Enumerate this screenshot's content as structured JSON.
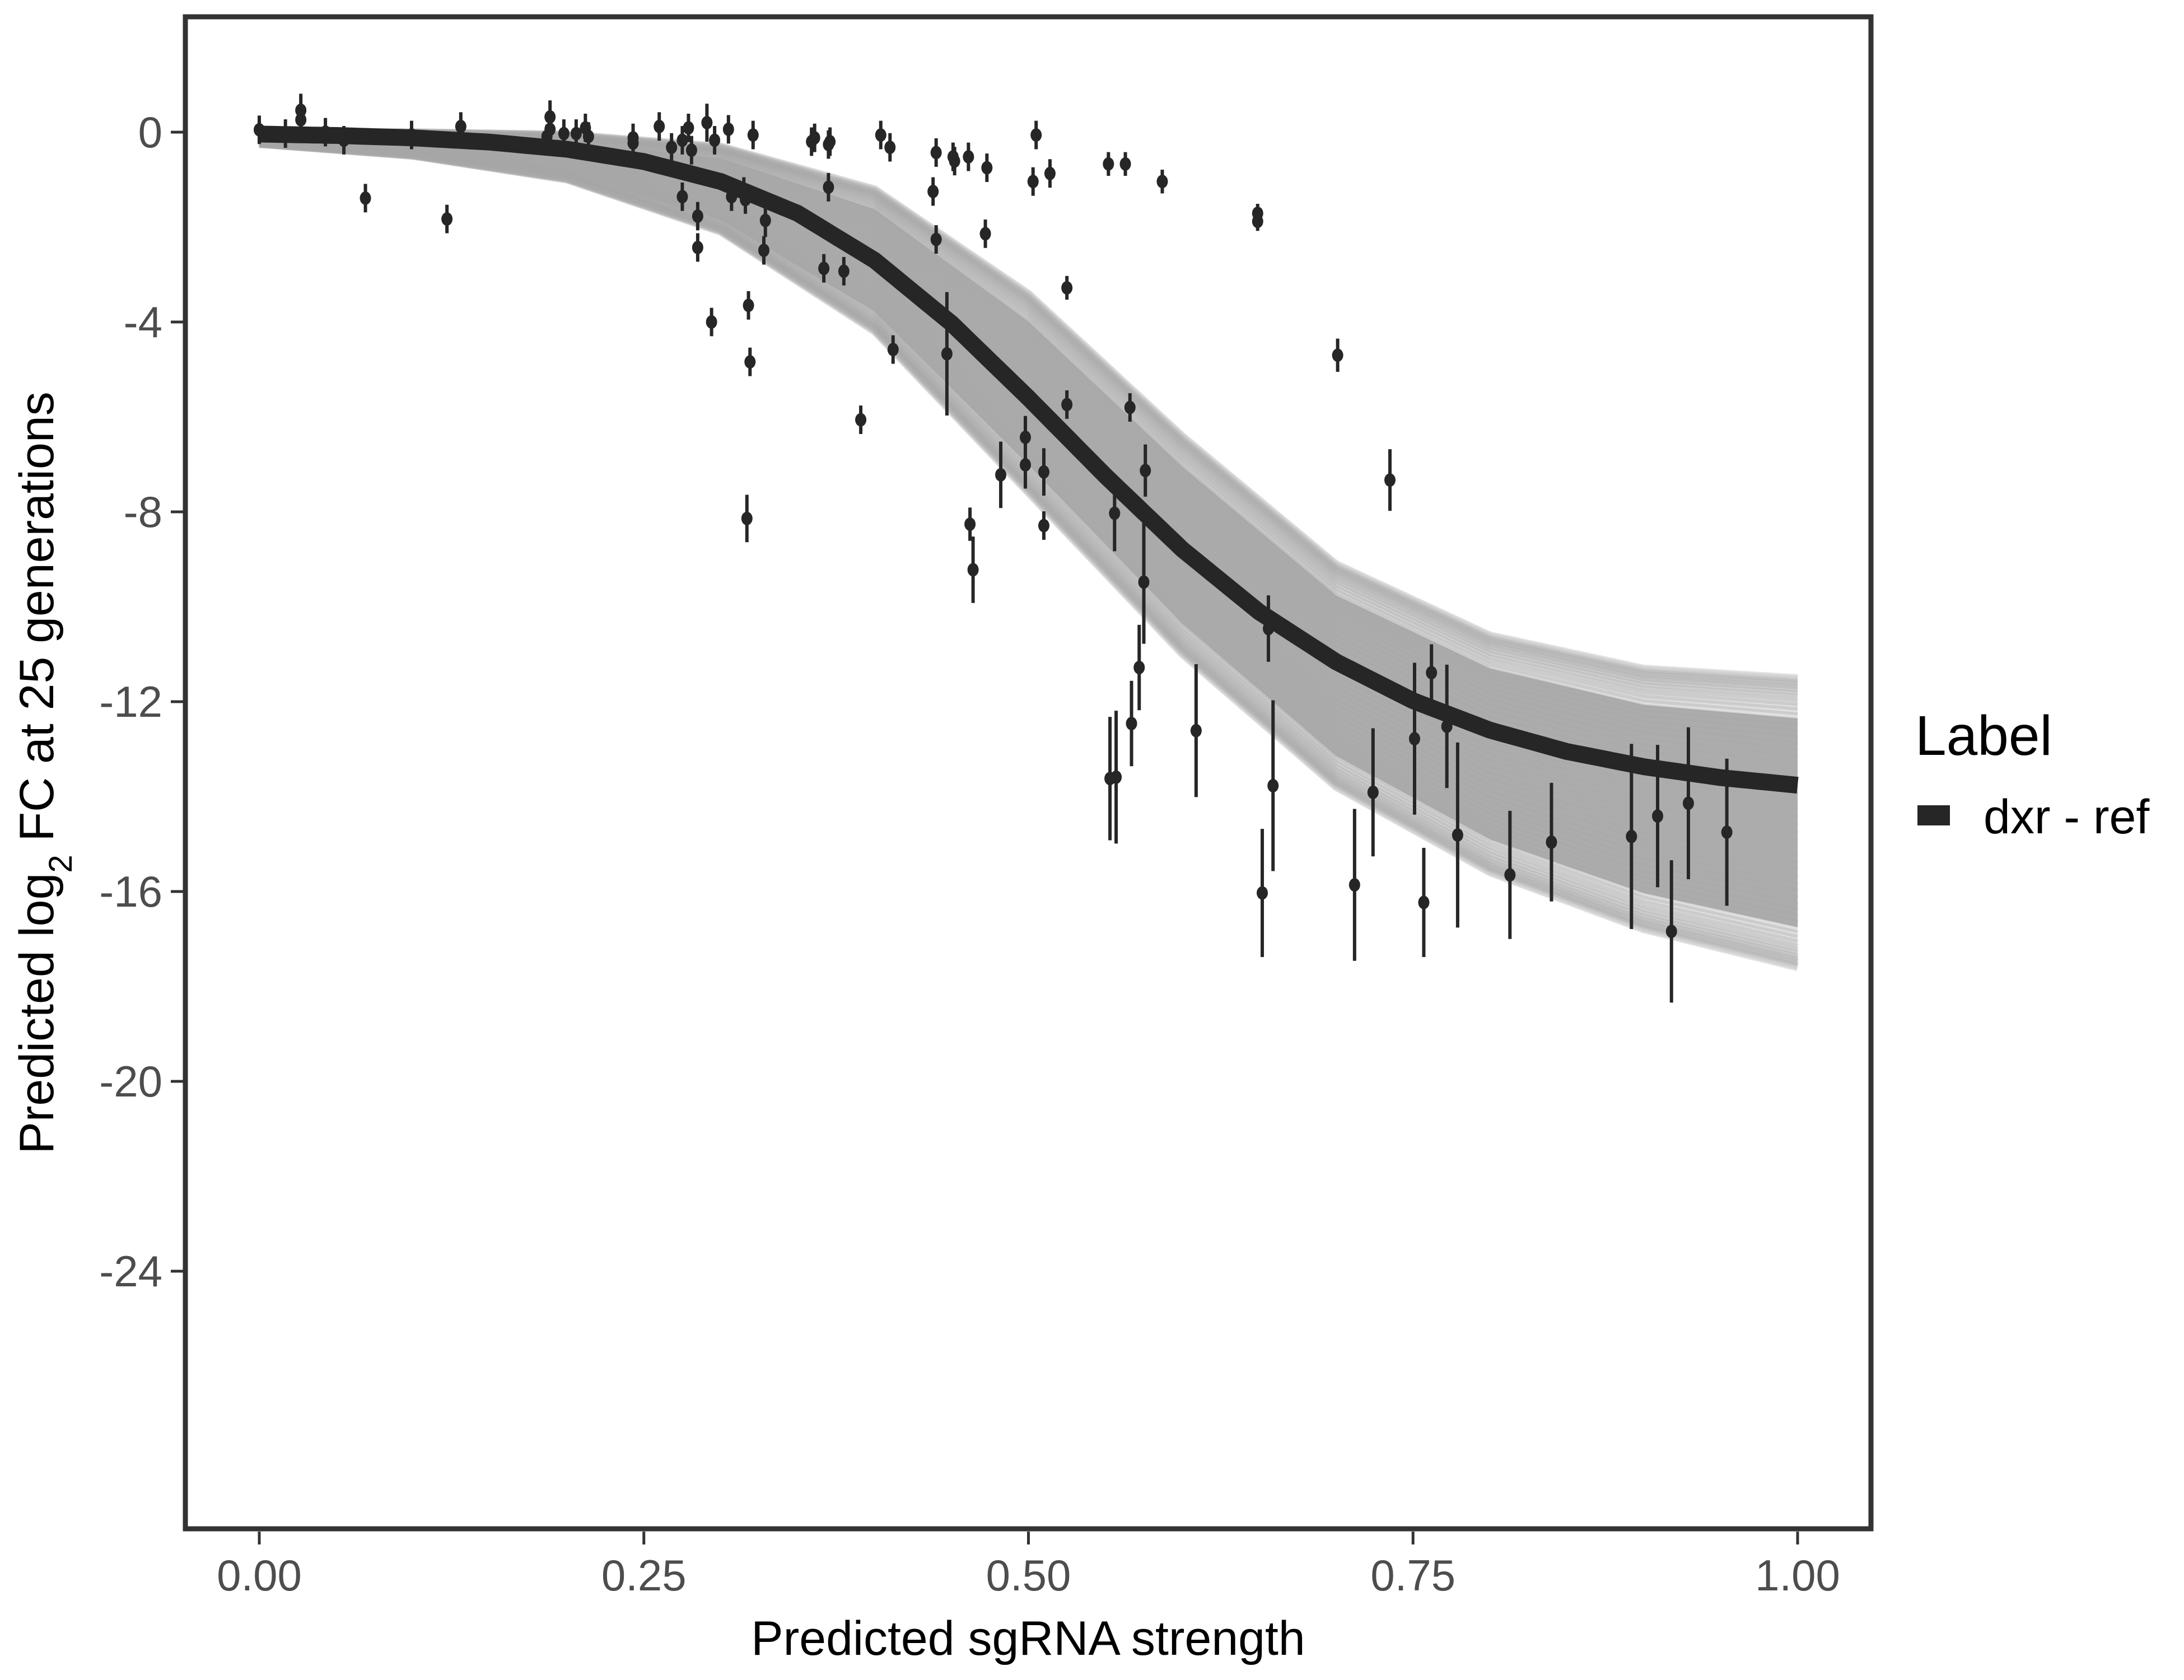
{
  "chart_data": {
    "type": "scatter",
    "title": "",
    "xlabel": "Predicted sgRNA strength",
    "ylabel_parts": {
      "before": "Predicted  log",
      "subscript": "2",
      "after": " FC at 25 generations"
    },
    "xlim": [
      -0.05,
      1.05
    ],
    "ylim": [
      -29.4,
      2.4
    ],
    "x_ticks": [
      0.0,
      0.25,
      0.5,
      0.75,
      1.0
    ],
    "x_tick_labels": [
      "0.00",
      "0.25",
      "0.50",
      "0.75",
      "1.00"
    ],
    "y_ticks": [
      0,
      -4,
      -8,
      -12,
      -16,
      -20,
      -24
    ],
    "y_tick_labels": [
      "0",
      "-4",
      "-8",
      "-12",
      "-16",
      "-20",
      "-24"
    ],
    "grid": false,
    "legend": {
      "title": "Label",
      "position": "right",
      "entries": [
        {
          "label": "dxr - ref",
          "color": "#262626"
        }
      ]
    },
    "colors": {
      "fit_line": "#262626",
      "posterior_draws": "#a6a6a6",
      "points": "#262626",
      "frame": "#333333"
    },
    "fit_curve": {
      "name": "dxr - ref",
      "model": "logistic",
      "x": [
        0.0,
        0.05,
        0.1,
        0.15,
        0.2,
        0.25,
        0.3,
        0.35,
        0.4,
        0.45,
        0.5,
        0.55,
        0.6,
        0.65,
        0.7,
        0.75,
        0.8,
        0.85,
        0.9,
        0.95,
        1.0
      ],
      "y": [
        -0.04,
        -0.07,
        -0.12,
        -0.21,
        -0.36,
        -0.62,
        -1.04,
        -1.71,
        -2.7,
        -4.03,
        -5.6,
        -7.24,
        -8.79,
        -10.11,
        -11.16,
        -11.98,
        -12.6,
        -13.05,
        -13.37,
        -13.6,
        -13.76
      ]
    },
    "posterior_band": {
      "x": [
        0.0,
        0.1,
        0.2,
        0.3,
        0.4,
        0.5,
        0.6,
        0.7,
        0.8,
        0.9,
        1.0
      ],
      "upper": [
        0.0,
        0.0,
        -0.05,
        -0.3,
        -1.2,
        -3.4,
        -6.4,
        -9.1,
        -10.6,
        -11.3,
        -11.5
      ],
      "lower": [
        -0.25,
        -0.5,
        -1.0,
        -2.1,
        -4.2,
        -7.6,
        -11.0,
        -13.8,
        -15.6,
        -16.8,
        -17.6
      ]
    },
    "points": [
      {
        "x": 0.0,
        "y": 0.05,
        "err": 0.3
      },
      {
        "x": 0.017,
        "y": -0.03,
        "err": 0.3
      },
      {
        "x": 0.027,
        "y": 0.46,
        "err": 0.35
      },
      {
        "x": 0.027,
        "y": 0.26,
        "err": 0.35
      },
      {
        "x": 0.043,
        "y": 0.0,
        "err": 0.3
      },
      {
        "x": 0.055,
        "y": -0.17,
        "err": 0.3
      },
      {
        "x": 0.069,
        "y": -1.39,
        "err": 0.3
      },
      {
        "x": 0.099,
        "y": -0.06,
        "err": 0.3
      },
      {
        "x": 0.122,
        "y": -1.83,
        "err": 0.3
      },
      {
        "x": 0.131,
        "y": 0.12,
        "err": 0.3
      },
      {
        "x": 0.187,
        "y": -0.09,
        "err": 0.25
      },
      {
        "x": 0.189,
        "y": 0.32,
        "err": 0.35
      },
      {
        "x": 0.189,
        "y": 0.06,
        "err": 0.3
      },
      {
        "x": 0.198,
        "y": -0.03,
        "err": 0.3
      },
      {
        "x": 0.206,
        "y": -0.03,
        "err": 0.3
      },
      {
        "x": 0.212,
        "y": 0.09,
        "err": 0.3
      },
      {
        "x": 0.214,
        "y": -0.09,
        "err": 0.3
      },
      {
        "x": 0.243,
        "y": -0.12,
        "err": 0.3
      },
      {
        "x": 0.243,
        "y": -0.23,
        "err": 0.3
      },
      {
        "x": 0.26,
        "y": 0.12,
        "err": 0.3
      },
      {
        "x": 0.268,
        "y": -0.32,
        "err": 0.3
      },
      {
        "x": 0.275,
        "y": -1.36,
        "err": 0.3
      },
      {
        "x": 0.275,
        "y": -0.17,
        "err": 0.3
      },
      {
        "x": 0.279,
        "y": 0.09,
        "err": 0.3
      },
      {
        "x": 0.281,
        "y": -0.38,
        "err": 0.3
      },
      {
        "x": 0.285,
        "y": -1.77,
        "err": 0.3
      },
      {
        "x": 0.285,
        "y": -2.43,
        "err": 0.3
      },
      {
        "x": 0.291,
        "y": 0.2,
        "err": 0.4
      },
      {
        "x": 0.294,
        "y": -4.0,
        "err": 0.3
      },
      {
        "x": 0.296,
        "y": -0.17,
        "err": 0.3
      },
      {
        "x": 0.305,
        "y": 0.06,
        "err": 0.3
      },
      {
        "x": 0.307,
        "y": -1.36,
        "err": 0.3
      },
      {
        "x": 0.315,
        "y": -1.25,
        "err": 0.3
      },
      {
        "x": 0.316,
        "y": -1.42,
        "err": 0.3
      },
      {
        "x": 0.317,
        "y": -8.14,
        "err": 0.5
      },
      {
        "x": 0.318,
        "y": -3.65,
        "err": 0.3
      },
      {
        "x": 0.319,
        "y": -4.84,
        "err": 0.3
      },
      {
        "x": 0.321,
        "y": -0.06,
        "err": 0.3
      },
      {
        "x": 0.328,
        "y": -2.49,
        "err": 0.3
      },
      {
        "x": 0.329,
        "y": -1.86,
        "err": 0.35
      },
      {
        "x": 0.359,
        "y": -0.2,
        "err": 0.3
      },
      {
        "x": 0.361,
        "y": -0.12,
        "err": 0.3
      },
      {
        "x": 0.367,
        "y": -2.87,
        "err": 0.3
      },
      {
        "x": 0.37,
        "y": -0.26,
        "err": 0.3
      },
      {
        "x": 0.371,
        "y": -0.2,
        "err": 0.3
      },
      {
        "x": 0.37,
        "y": -1.16,
        "err": 0.3
      },
      {
        "x": 0.38,
        "y": -2.93,
        "err": 0.3
      },
      {
        "x": 0.391,
        "y": -6.06,
        "err": 0.3
      },
      {
        "x": 0.404,
        "y": -0.06,
        "err": 0.3
      },
      {
        "x": 0.41,
        "y": -0.32,
        "err": 0.3
      },
      {
        "x": 0.412,
        "y": -4.58,
        "err": 0.3
      },
      {
        "x": 0.438,
        "y": -1.25,
        "err": 0.3
      },
      {
        "x": 0.44,
        "y": -0.43,
        "err": 0.3
      },
      {
        "x": 0.44,
        "y": -2.26,
        "err": 0.3
      },
      {
        "x": 0.447,
        "y": -4.67,
        "err": 1.3
      },
      {
        "x": 0.451,
        "y": -0.52,
        "err": 0.3
      },
      {
        "x": 0.452,
        "y": -0.61,
        "err": 0.3
      },
      {
        "x": 0.461,
        "y": -0.52,
        "err": 0.3
      },
      {
        "x": 0.462,
        "y": -8.26,
        "err": 0.35
      },
      {
        "x": 0.464,
        "y": -9.22,
        "err": 0.7
      },
      {
        "x": 0.472,
        "y": -2.14,
        "err": 0.3
      },
      {
        "x": 0.473,
        "y": -0.75,
        "err": 0.3
      },
      {
        "x": 0.482,
        "y": -7.22,
        "err": 0.7
      },
      {
        "x": 0.498,
        "y": -6.43,
        "err": 0.45
      },
      {
        "x": 0.498,
        "y": -7.01,
        "err": 0.5
      },
      {
        "x": 0.503,
        "y": -1.04,
        "err": 0.3
      },
      {
        "x": 0.505,
        "y": -0.06,
        "err": 0.3
      },
      {
        "x": 0.51,
        "y": -7.16,
        "err": 0.5
      },
      {
        "x": 0.51,
        "y": -8.29,
        "err": 0.3
      },
      {
        "x": 0.514,
        "y": -0.87,
        "err": 0.3
      },
      {
        "x": 0.525,
        "y": -3.28,
        "err": 0.25
      },
      {
        "x": 0.525,
        "y": -5.74,
        "err": 0.3
      },
      {
        "x": 0.552,
        "y": -0.67,
        "err": 0.25
      },
      {
        "x": 0.553,
        "y": -13.62,
        "err": 1.3
      },
      {
        "x": 0.556,
        "y": -8.03,
        "err": 0.8
      },
      {
        "x": 0.557,
        "y": -13.59,
        "err": 1.4
      },
      {
        "x": 0.563,
        "y": -0.67,
        "err": 0.25
      },
      {
        "x": 0.566,
        "y": -5.8,
        "err": 0.3
      },
      {
        "x": 0.567,
        "y": -12.46,
        "err": 0.9
      },
      {
        "x": 0.572,
        "y": -11.28,
        "err": 0.9
      },
      {
        "x": 0.575,
        "y": -9.48,
        "err": 1.3
      },
      {
        "x": 0.576,
        "y": -7.13,
        "err": 0.55
      },
      {
        "x": 0.587,
        "y": -1.04,
        "err": 0.25
      },
      {
        "x": 0.609,
        "y": -12.61,
        "err": 1.4
      },
      {
        "x": 0.649,
        "y": -1.71,
        "err": 0.2
      },
      {
        "x": 0.649,
        "y": -1.88,
        "err": 0.2
      },
      {
        "x": 0.652,
        "y": -16.03,
        "err": 1.35
      },
      {
        "x": 0.656,
        "y": -10.46,
        "err": 0.7
      },
      {
        "x": 0.659,
        "y": -13.77,
        "err": 1.8
      },
      {
        "x": 0.701,
        "y": -4.7,
        "err": 0.35
      },
      {
        "x": 0.712,
        "y": -15.86,
        "err": 1.6
      },
      {
        "x": 0.724,
        "y": -13.91,
        "err": 1.35
      },
      {
        "x": 0.735,
        "y": -7.33,
        "err": 0.65
      },
      {
        "x": 0.751,
        "y": -12.78,
        "err": 1.6
      },
      {
        "x": 0.757,
        "y": -16.23,
        "err": 1.15
      },
      {
        "x": 0.762,
        "y": -11.39,
        "err": 0.6
      },
      {
        "x": 0.772,
        "y": -12.52,
        "err": 1.3
      },
      {
        "x": 0.779,
        "y": -14.81,
        "err": 1.95
      },
      {
        "x": 0.813,
        "y": -15.65,
        "err": 1.35
      },
      {
        "x": 0.84,
        "y": -14.96,
        "err": 1.25
      },
      {
        "x": 0.892,
        "y": -14.84,
        "err": 1.95
      },
      {
        "x": 0.909,
        "y": -14.41,
        "err": 1.5
      },
      {
        "x": 0.918,
        "y": -16.84,
        "err": 1.5
      },
      {
        "x": 0.929,
        "y": -14.14,
        "err": 1.6
      },
      {
        "x": 0.954,
        "y": -14.75,
        "err": 1.55
      }
    ]
  }
}
